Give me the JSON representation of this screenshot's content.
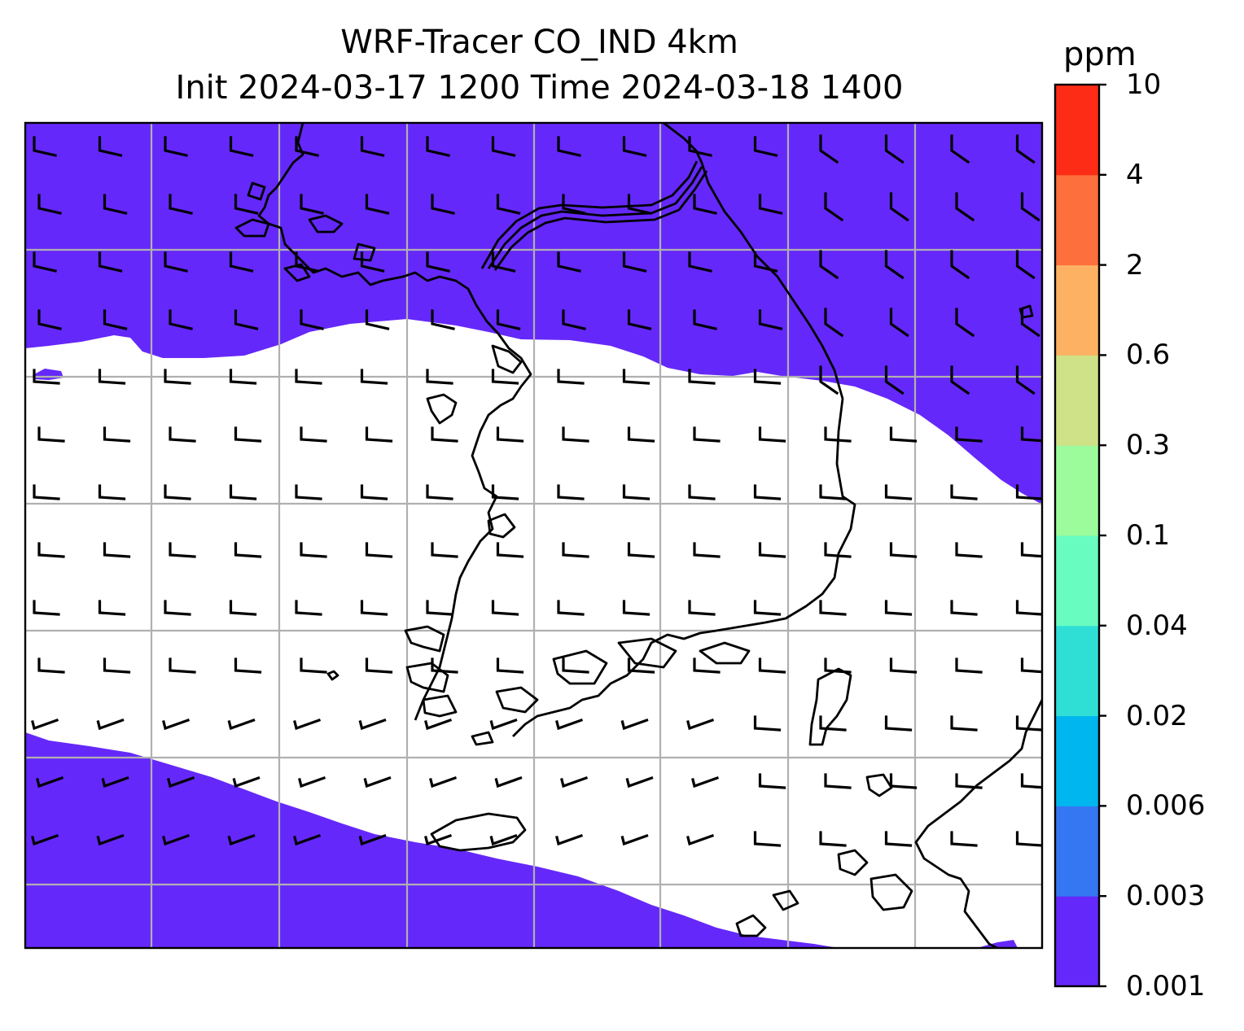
{
  "title": {
    "line1": "WRF-Tracer CO_IND 4km",
    "line2": "Init 2024-03-17 1200 Time 2024-03-18 1400"
  },
  "colorbar": {
    "unit": "ppm",
    "levels": [
      "0.001",
      "0.003",
      "0.006",
      "0.02",
      "0.04",
      "0.1",
      "0.3",
      "0.6",
      "2",
      "4",
      "10"
    ],
    "colors": [
      "#6528fa",
      "#3576f2",
      "#00b6ee",
      "#2fdfd6",
      "#68fcc0",
      "#9cfc9c",
      "#cfe287",
      "#fdb263",
      "#fd6f3c",
      "#fd2c17"
    ]
  },
  "map": {
    "background_color": "#ffffff",
    "tracer_fill_color": "#6528fa",
    "coastline_color": "#000000",
    "gridline_color": "#b0b0b0",
    "wind_barb_color": "#000000"
  }
}
